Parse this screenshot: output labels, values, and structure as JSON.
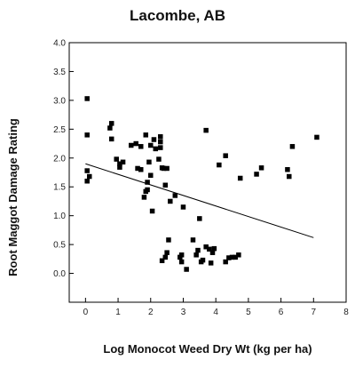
{
  "chart_data": {
    "type": "scatter",
    "title": "Lacombe, AB",
    "xlabel": "Log Monocot Weed Dry Wt (kg per ha)",
    "ylabel": "Root Maggot Damage Rating",
    "xlim": [
      -0.5,
      8
    ],
    "ylim": [
      -0.5,
      4.0
    ],
    "x_ticks": [
      0,
      1,
      2,
      3,
      4,
      5,
      6,
      7,
      8
    ],
    "y_ticks": [
      0.0,
      0.5,
      1.0,
      1.5,
      2.0,
      2.5,
      3.0,
      3.5,
      4.0
    ],
    "y_tick_labels": [
      "0.0",
      "0.5",
      "1.0",
      "1.5",
      "2.0",
      "2.5",
      "3.0",
      "3.5",
      "4.0"
    ],
    "grid": false,
    "point_color": "#000000",
    "points": [
      [
        0.05,
        3.03
      ],
      [
        0.05,
        2.4
      ],
      [
        0.05,
        1.78
      ],
      [
        0.05,
        1.6
      ],
      [
        0.12,
        1.68
      ],
      [
        0.75,
        2.52
      ],
      [
        0.8,
        2.6
      ],
      [
        0.8,
        2.33
      ],
      [
        0.95,
        1.98
      ],
      [
        1.05,
        1.9
      ],
      [
        1.05,
        1.84
      ],
      [
        1.15,
        1.93
      ],
      [
        1.4,
        2.22
      ],
      [
        1.55,
        2.25
      ],
      [
        1.6,
        1.82
      ],
      [
        1.7,
        1.8
      ],
      [
        1.7,
        2.2
      ],
      [
        1.8,
        1.32
      ],
      [
        1.85,
        1.42
      ],
      [
        1.85,
        2.4
      ],
      [
        1.9,
        1.58
      ],
      [
        1.9,
        1.45
      ],
      [
        1.95,
        1.93
      ],
      [
        2.0,
        2.22
      ],
      [
        2.0,
        1.7
      ],
      [
        2.05,
        1.08
      ],
      [
        2.1,
        2.32
      ],
      [
        2.15,
        2.16
      ],
      [
        2.25,
        1.98
      ],
      [
        2.3,
        2.37
      ],
      [
        2.3,
        2.28
      ],
      [
        2.3,
        2.18
      ],
      [
        2.35,
        1.83
      ],
      [
        2.4,
        1.82
      ],
      [
        2.45,
        1.53
      ],
      [
        2.5,
        1.82
      ],
      [
        2.35,
        0.22
      ],
      [
        2.45,
        0.28
      ],
      [
        2.5,
        0.36
      ],
      [
        2.55,
        0.58
      ],
      [
        2.6,
        1.25
      ],
      [
        2.75,
        1.35
      ],
      [
        2.9,
        0.28
      ],
      [
        2.95,
        0.32
      ],
      [
        2.95,
        0.2
      ],
      [
        3.0,
        1.15
      ],
      [
        3.1,
        0.07
      ],
      [
        3.3,
        0.58
      ],
      [
        3.4,
        0.32
      ],
      [
        3.45,
        0.4
      ],
      [
        3.5,
        0.95
      ],
      [
        3.55,
        0.2
      ],
      [
        3.6,
        0.23
      ],
      [
        3.7,
        2.48
      ],
      [
        3.7,
        0.46
      ],
      [
        3.8,
        0.42
      ],
      [
        3.85,
        0.18
      ],
      [
        3.9,
        0.36
      ],
      [
        3.95,
        0.43
      ],
      [
        4.1,
        1.88
      ],
      [
        4.3,
        2.04
      ],
      [
        4.3,
        0.2
      ],
      [
        4.4,
        0.27
      ],
      [
        4.5,
        0.28
      ],
      [
        4.6,
        0.28
      ],
      [
        4.7,
        0.32
      ],
      [
        4.75,
        1.65
      ],
      [
        5.25,
        1.72
      ],
      [
        5.4,
        1.83
      ],
      [
        6.2,
        1.8
      ],
      [
        6.25,
        1.68
      ],
      [
        6.35,
        2.2
      ],
      [
        7.1,
        2.36
      ]
    ],
    "trend_line": {
      "x": [
        0.0,
        7.0
      ],
      "y": [
        1.9,
        0.62
      ]
    }
  }
}
